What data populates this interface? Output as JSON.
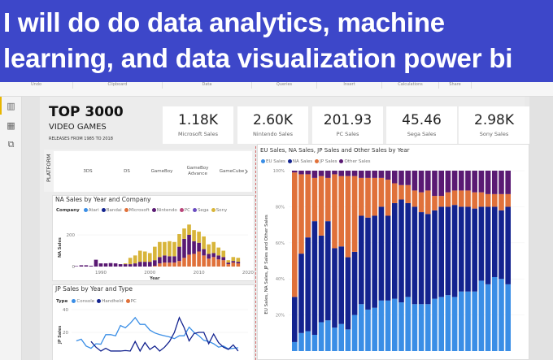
{
  "banner": {
    "line1": "I will do do data analytics, machine",
    "line2": "learning, and data visualization power bi"
  },
  "ribbon": [
    "Undo",
    "Clipboard",
    "Data",
    "Queries",
    "Insert",
    "Calculations",
    "Share"
  ],
  "rail": [
    {
      "icon": "report-icon",
      "glyph": "▥"
    },
    {
      "icon": "table-icon",
      "glyph": "▦"
    },
    {
      "icon": "model-icon",
      "glyph": "⧉"
    }
  ],
  "header": {
    "title": "TOP 3000",
    "subtitle": "VIDEO GAMES",
    "note": "RELEASES FROM 1985 TO 2018"
  },
  "kpis": [
    {
      "value": "1.18K",
      "label": "Microsoft Sales"
    },
    {
      "value": "2.60K",
      "label": "Nintendo Sales"
    },
    {
      "value": "201.93",
      "label": "PC Sales"
    },
    {
      "value": "45.46",
      "label": "Sega Sales"
    },
    {
      "value": "2.98K",
      "label": "Sony Sales"
    }
  ],
  "slicer": {
    "header": "PLATFORM",
    "items": [
      "3DS",
      "DS",
      "GameBoy",
      "GameBoy Advance",
      "GameCube"
    ],
    "next_glyph": "›"
  },
  "colors": {
    "eu": "#3a8ee6",
    "na": "#13238f",
    "jp": "#e0713a",
    "other": "#5a1a73",
    "atari": "#3a8ee6",
    "bandai": "#13238f",
    "microsoft": "#e0713a",
    "nintendo": "#5a1a73",
    "pc": "#b9467a",
    "sega": "#6a4cc0",
    "sony": "#d8b53a",
    "console": "#3a8ee6",
    "handheld": "#13238f",
    "pc_line": "#e0713a"
  },
  "chart_data": [
    {
      "type": "bar",
      "stacked": true,
      "title": "NA Sales by Year and Company",
      "legend_title": "Company",
      "legend": [
        "Atari",
        "Bandai",
        "Microsoft",
        "Nintendo",
        "PC",
        "Sega",
        "Sony"
      ],
      "xlabel": "Year",
      "ylabel": "NA Sales",
      "xticks": [
        "1990",
        "2000",
        "2010",
        "2020"
      ],
      "yticks": [
        "0",
        "200"
      ],
      "ylim": [
        0,
        300
      ],
      "x": [
        1985,
        1986,
        1987,
        1988,
        1989,
        1990,
        1991,
        1992,
        1993,
        1994,
        1995,
        1996,
        1997,
        1998,
        1999,
        2000,
        2001,
        2002,
        2003,
        2004,
        2005,
        2006,
        2007,
        2008,
        2009,
        2010,
        2011,
        2012,
        2013,
        2014,
        2015,
        2016,
        2017,
        2018
      ],
      "series": [
        {
          "name": "Microsoft",
          "values": [
            0,
            0,
            0,
            0,
            0,
            0,
            0,
            0,
            0,
            0,
            0,
            0,
            0,
            0,
            0,
            0,
            5,
            20,
            25,
            25,
            25,
            35,
            55,
            75,
            80,
            95,
            70,
            50,
            60,
            45,
            40,
            15,
            25,
            20
          ]
        },
        {
          "name": "Nintendo",
          "values": [
            3,
            8,
            8,
            5,
            43,
            20,
            20,
            22,
            20,
            15,
            15,
            15,
            20,
            30,
            30,
            30,
            35,
            40,
            45,
            40,
            40,
            90,
            120,
            125,
            80,
            55,
            40,
            30,
            25,
            25,
            20,
            10,
            10,
            10
          ]
        },
        {
          "name": "Sony",
          "values": [
            0,
            0,
            0,
            0,
            0,
            0,
            0,
            0,
            0,
            0,
            5,
            40,
            50,
            70,
            65,
            55,
            85,
            95,
            85,
            95,
            90,
            80,
            65,
            65,
            70,
            70,
            80,
            60,
            70,
            50,
            40,
            15,
            25,
            25
          ]
        }
      ]
    },
    {
      "type": "line",
      "title": "JP Sales by Year and Type",
      "legend_title": "Type",
      "legend": [
        "Console",
        "Handheld",
        "PC"
      ],
      "ylabel": "JP Sales",
      "yticks": [
        "20",
        "40"
      ],
      "ylim": [
        0,
        40
      ],
      "series": [
        {
          "name": "Console",
          "x": [
            1985,
            1986,
            1987,
            1988,
            1989,
            1990,
            1991,
            1992,
            1993,
            1994,
            1995,
            1996,
            1997,
            1998,
            1999,
            2000,
            2001,
            2002,
            2003,
            2004,
            2005,
            2006,
            2007,
            2008,
            2009,
            2010,
            2011,
            2012,
            2013,
            2014,
            2015,
            2016,
            2017,
            2018
          ],
          "values": [
            12.5,
            14,
            8,
            6,
            10,
            9.6,
            18,
            18,
            17,
            26,
            24,
            28,
            33,
            27,
            27,
            22,
            19.5,
            18,
            17,
            16,
            14.5,
            17,
            17,
            24.6,
            20,
            17,
            13,
            12,
            10,
            7,
            8,
            5.5,
            6,
            6.5
          ]
        },
        {
          "name": "Handheld",
          "x": [
            1988,
            1989,
            1990,
            1991,
            1992,
            1993,
            1994,
            1995,
            1996,
            1997,
            1998,
            1999,
            2000,
            2001,
            2002,
            2003,
            2004,
            2005,
            2006,
            2007,
            2008,
            2009,
            2010,
            2011,
            2012,
            2013,
            2014,
            2015,
            2016,
            2017,
            2018
          ],
          "values": [
            12,
            7,
            3.6,
            6,
            3.6,
            3.6,
            3.6,
            4,
            3.6,
            12,
            3.6,
            11,
            5,
            8,
            3.6,
            7,
            12,
            20,
            33,
            24,
            12.5,
            19,
            20,
            20,
            10,
            18.5,
            11,
            7,
            5,
            9,
            3.6
          ]
        }
      ]
    },
    {
      "type": "bar",
      "stacked_percent": true,
      "title": "EU Sales, NA Sales, JP Sales and Other Sales by Year",
      "legend": [
        "EU Sales",
        "NA Sales",
        "JP Sales",
        "Other Sales"
      ],
      "ylabel": "EU Sales, NA Sales, JP Sales and Other Sales",
      "yticks": [
        "20%",
        "40%",
        "60%",
        "80%",
        "100%"
      ],
      "ylim": [
        0,
        100
      ],
      "series": [
        {
          "name": "EU Sales",
          "values": [
            5,
            10,
            11,
            9,
            16,
            17,
            13,
            15,
            12,
            20,
            26,
            23,
            24,
            28,
            28,
            29,
            27,
            30,
            26,
            26,
            26,
            29,
            30,
            31,
            30,
            33,
            33,
            33,
            39,
            37,
            41,
            40,
            37
          ]
        },
        {
          "name": "NA Sales",
          "values": [
            25,
            44,
            52,
            63,
            48,
            55,
            44,
            43,
            40,
            35,
            49,
            51,
            51,
            52,
            47,
            53,
            57,
            52,
            54,
            51,
            50,
            49,
            50,
            49,
            51,
            47,
            47,
            46,
            41,
            43,
            39,
            38,
            43
          ]
        },
        {
          "name": "JP Sales",
          "values": [
            69,
            44,
            35,
            24,
            33,
            24,
            41,
            39,
            45,
            42,
            21,
            22,
            21,
            16,
            20,
            11,
            8,
            10,
            9,
            11,
            13,
            8,
            6,
            8,
            8,
            9,
            9,
            9,
            8,
            7,
            7,
            9,
            7
          ]
        },
        {
          "name": "Other Sales",
          "values": [
            1,
            2,
            2,
            4,
            3,
            4,
            2,
            3,
            3,
            3,
            4,
            4,
            4,
            4,
            5,
            7,
            8,
            8,
            11,
            12,
            11,
            14,
            14,
            12,
            11,
            11,
            11,
            12,
            12,
            13,
            13,
            13,
            13
          ]
        }
      ]
    }
  ]
}
